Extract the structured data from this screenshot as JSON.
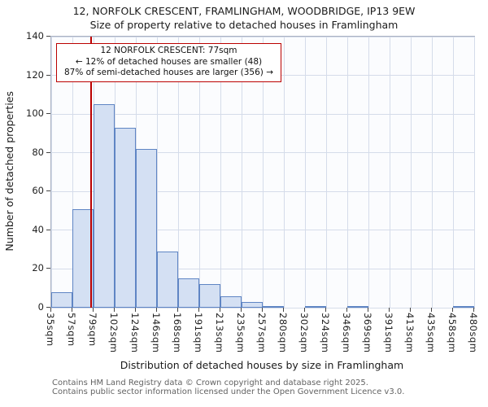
{
  "chart_data": {
    "type": "bar",
    "title": "12, NORFOLK CRESCENT, FRAMLINGHAM, WOODBRIDGE, IP13 9EW",
    "subtitle": "Size of property relative to detached houses in Framlingham",
    "xlabel": "Distribution of detached houses by size in Framlingham",
    "ylabel": "Number of detached properties",
    "ylim": [
      0,
      140
    ],
    "yticks": [
      0,
      20,
      40,
      60,
      80,
      100,
      120,
      140
    ],
    "grid": true,
    "legend": "none",
    "bin_edges_sqm": [
      35,
      57,
      79,
      102,
      124,
      146,
      168,
      191,
      213,
      235,
      257,
      280,
      302,
      324,
      346,
      369,
      391,
      413,
      435,
      458,
      480
    ],
    "categories": [
      "35sqm",
      "57sqm",
      "79sqm",
      "102sqm",
      "124sqm",
      "146sqm",
      "168sqm",
      "191sqm",
      "213sqm",
      "235sqm",
      "257sqm",
      "280sqm",
      "302sqm",
      "324sqm",
      "346sqm",
      "369sqm",
      "391sqm",
      "413sqm",
      "435sqm",
      "458sqm",
      "480sqm"
    ],
    "values": [
      8,
      51,
      105,
      93,
      82,
      29,
      15,
      12,
      6,
      3,
      1,
      0,
      1,
      0,
      1,
      0,
      0,
      0,
      0,
      1
    ],
    "marker_sqm": 77,
    "annotation": {
      "line1": "12 NORFOLK CRESCENT: 77sqm",
      "line2": "← 12% of detached houses are smaller (48)",
      "line3": "87% of semi-detached houses are larger (356) →"
    },
    "colors": {
      "bar_fill": "#d4e0f3",
      "bar_border": "#5f85c4",
      "marker": "#bb0000",
      "grid": "#d5dcea",
      "annotation_border": "#bb0000"
    }
  },
  "footer": {
    "line1": "Contains HM Land Registry data © Crown copyright and database right 2025.",
    "line2": "Contains public sector information licensed under the Open Government Licence v3.0."
  }
}
